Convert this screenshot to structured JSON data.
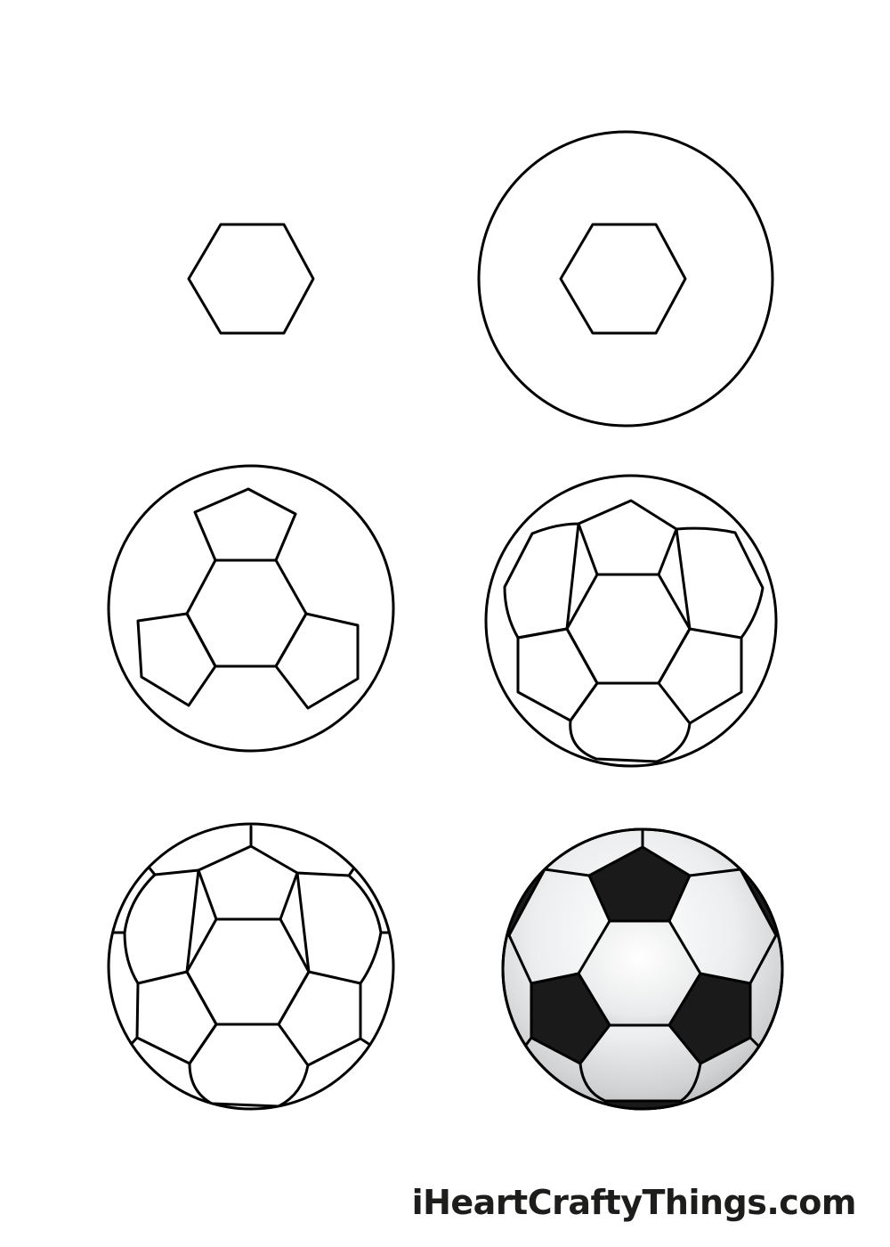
{
  "steps": [
    {
      "id": 1,
      "stage": "hexagon"
    },
    {
      "id": 2,
      "stage": "hexagon-with-circle"
    },
    {
      "id": 3,
      "stage": "three-pentagons"
    },
    {
      "id": 4,
      "stage": "surrounding-panels"
    },
    {
      "id": 5,
      "stage": "outer-edge-panels"
    },
    {
      "id": 6,
      "stage": "colored"
    }
  ],
  "watermark": "iHeartCraftyThings.com",
  "colors": {
    "line": "#000000",
    "paper": "#ffffff",
    "black_panel": "#1a1a1a",
    "white_panel_light": "#f5f5f5",
    "white_panel_shade": "#c4c6c8"
  }
}
